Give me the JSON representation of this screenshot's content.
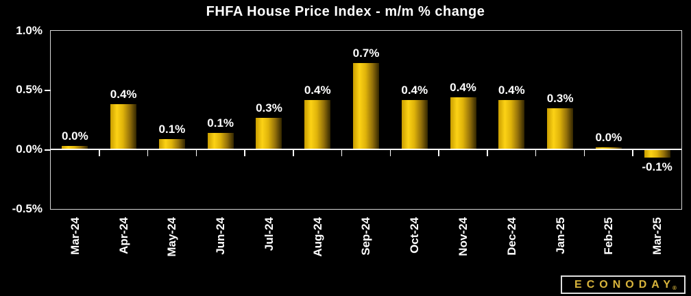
{
  "chart_data": {
    "type": "bar",
    "title": "FHFA House Price Index - m/m % change",
    "categories": [
      "Mar-24",
      "Apr-24",
      "May-24",
      "Jun-24",
      "Jul-24",
      "Aug-24",
      "Sep-24",
      "Oct-24",
      "Nov-24",
      "Dec-24",
      "Jan-25",
      "Feb-25",
      "Mar-25"
    ],
    "values": [
      0.0,
      0.4,
      0.1,
      0.1,
      0.3,
      0.4,
      0.7,
      0.4,
      0.4,
      0.4,
      0.3,
      0.0,
      -0.1
    ],
    "bar_labels": [
      "0.0%",
      "0.4%",
      "0.1%",
      "0.1%",
      "0.3%",
      "0.4%",
      "0.7%",
      "0.4%",
      "0.4%",
      "0.4%",
      "0.3%",
      "0.0%",
      "-0.1%"
    ],
    "plotted_values_est": [
      0.03,
      0.38,
      0.09,
      0.14,
      0.27,
      0.42,
      0.73,
      0.42,
      0.44,
      0.42,
      0.35,
      0.02,
      -0.06
    ],
    "xlabel": "",
    "ylabel": "",
    "ylim": [
      -0.5,
      1.0
    ],
    "y_ticks": [
      {
        "value": 1.0,
        "label": "1.0%",
        "tick_mark": false
      },
      {
        "value": 0.5,
        "label": "0.5%",
        "tick_mark": true
      },
      {
        "value": 0.0,
        "label": "0.0%",
        "tick_mark": true
      },
      {
        "value": -0.5,
        "label": "-0.5%",
        "tick_mark": false
      }
    ],
    "grid": false,
    "legend": false,
    "colors": {
      "background": "#000000",
      "text": "#ffffff",
      "axis_border": "#d9d9d9",
      "bar_gradient": [
        "#c99d00",
        "#fcd215",
        "#e0b40a",
        "#93700a",
        "#332600"
      ]
    }
  },
  "logo": {
    "text": "ECONODAY",
    "registered_mark": "®",
    "text_color": "#d9b53c",
    "border_color": "#e0e0e0",
    "background": "#000000"
  }
}
